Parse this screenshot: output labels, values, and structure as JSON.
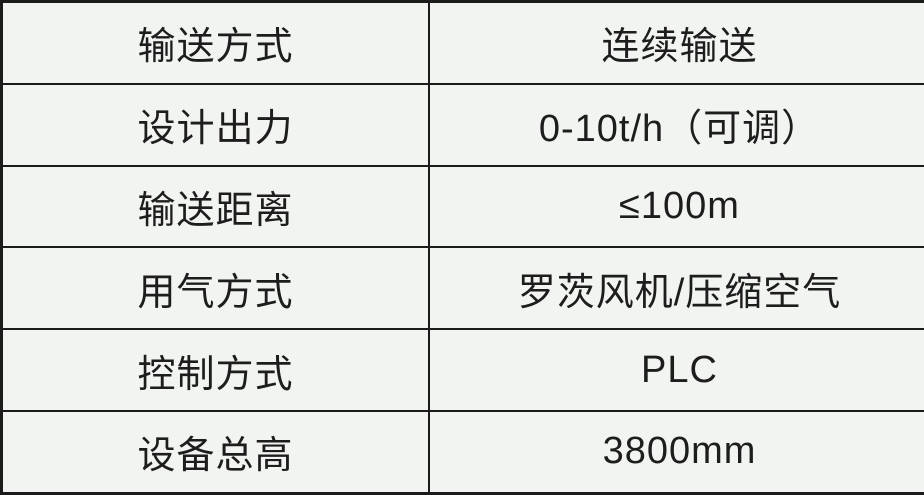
{
  "table": {
    "rows": [
      {
        "label": "输送方式",
        "value": "连续输送"
      },
      {
        "label": "设计出力",
        "value": "0-10t/h（可调）"
      },
      {
        "label": "输送距离",
        "value": "≤100m"
      },
      {
        "label": "用气方式",
        "value": "罗茨风机/压缩空气"
      },
      {
        "label": "控制方式",
        "value": "PLC"
      },
      {
        "label": "设备总高",
        "value": "3800mm"
      }
    ]
  },
  "colors": {
    "background": "#f1f4f0",
    "border": "#1b1b1b",
    "text": "#1d1d1d"
  }
}
